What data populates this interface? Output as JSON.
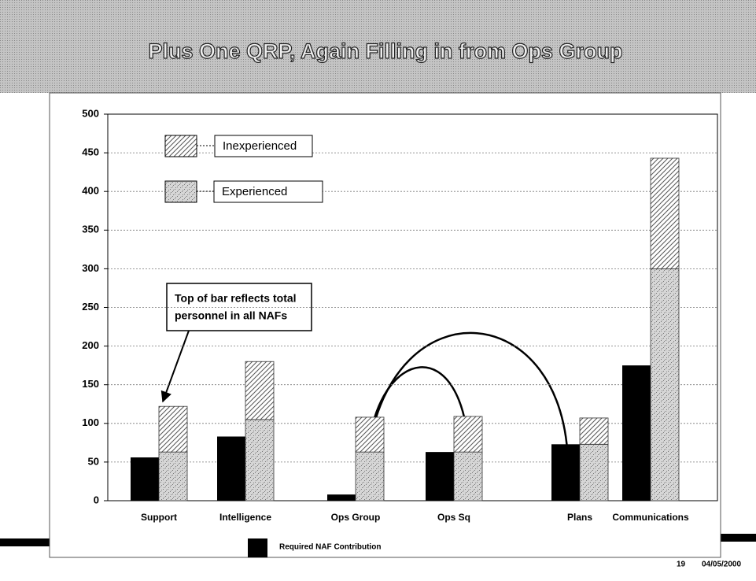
{
  "chart_data": {
    "type": "bar",
    "title": "Plus One QRP, Again Filling in from Ops Group",
    "categories": [
      "Support",
      "Intelligence",
      "Ops Group",
      "Ops Sq",
      "Plans",
      "Communications"
    ],
    "series": [
      {
        "name": "Required NAF Contribution",
        "color": "#000000",
        "values": [
          56,
          83,
          8,
          63,
          73,
          175
        ]
      },
      {
        "name": "Experienced",
        "color": "#d6d6d6",
        "values": [
          63,
          105,
          63,
          63,
          73,
          300
        ]
      },
      {
        "name": "Inexperienced",
        "color": "#ffffff",
        "values": [
          59,
          75,
          45,
          46,
          34,
          143
        ]
      }
    ],
    "ylim": [
      0,
      500
    ],
    "yticks": [
      0,
      50,
      100,
      150,
      200,
      250,
      300,
      350,
      400,
      450,
      500
    ],
    "grid": true,
    "annotations": [
      "Top of bar reflects total",
      "personnel in all NAFs"
    ],
    "footer": {
      "page": "19",
      "date": "04/05/2000"
    }
  }
}
